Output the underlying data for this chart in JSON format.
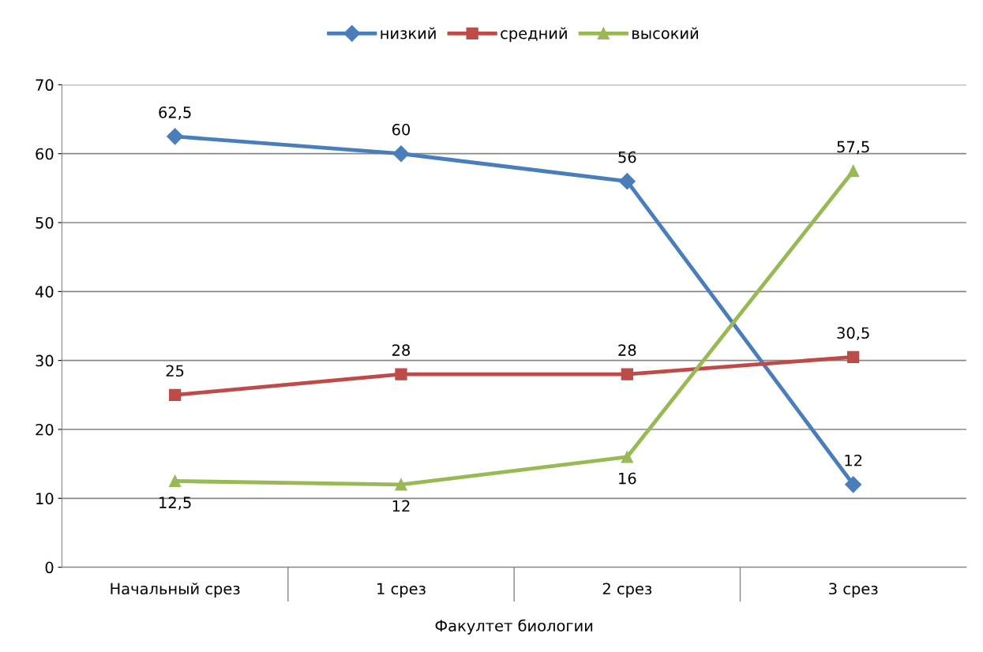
{
  "chart_data": {
    "type": "line",
    "xlabel": "Факултет биологии",
    "categories": [
      "Начальный срез",
      "1 срез",
      "2 срез",
      "3 срез"
    ],
    "series": [
      {
        "name": "низкий",
        "color": "#4a7ebb",
        "marker": "diamond",
        "values": [
          62.5,
          60,
          56,
          12
        ],
        "value_labels": [
          "62,5",
          "60",
          "56",
          "12"
        ]
      },
      {
        "name": "средний",
        "color": "#be4b48",
        "marker": "square",
        "values": [
          25,
          28,
          28,
          30.5
        ],
        "value_labels": [
          "25",
          "28",
          "28",
          "30,5"
        ]
      },
      {
        "name": "высокий",
        "color": "#98b954",
        "marker": "triangle",
        "values": [
          12.5,
          12,
          16,
          57.5
        ],
        "value_labels": [
          "12,5",
          "12",
          "16",
          "57,5"
        ]
      }
    ],
    "ylim": [
      0,
      70
    ],
    "yticks": [
      0,
      10,
      20,
      30,
      40,
      50,
      60,
      70
    ],
    "grid": "y",
    "legend": "top"
  }
}
